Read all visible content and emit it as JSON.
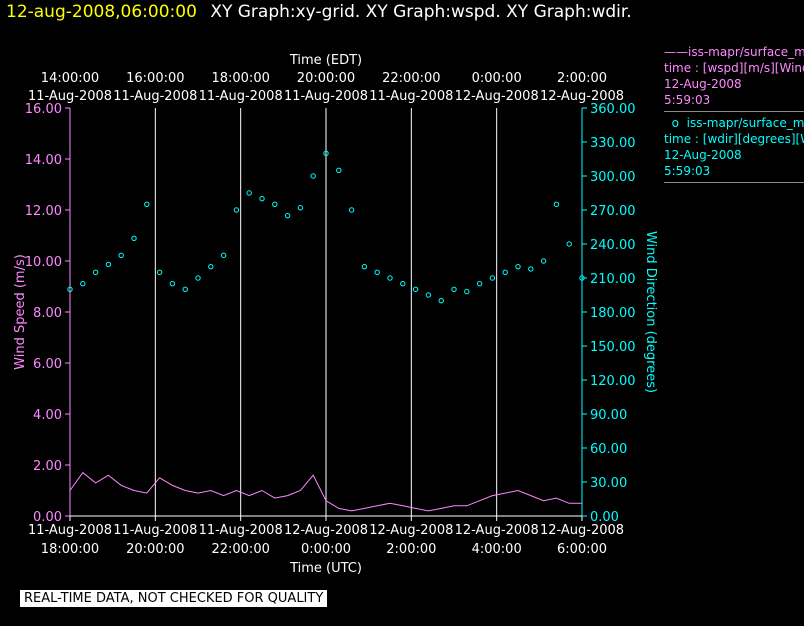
{
  "title": {
    "datetime": "12-aug-2008,06:00:00",
    "graphs": "XY Graph:xy-grid.  XY Graph:wspd.  XY Graph:wdir."
  },
  "top_axis": {
    "label": "Time (EDT)",
    "ticks": [
      {
        "time": "14:00:00",
        "date": "11-Aug-2008"
      },
      {
        "time": "16:00:00",
        "date": "11-Aug-2008"
      },
      {
        "time": "18:00:00",
        "date": "11-Aug-2008"
      },
      {
        "time": "20:00:00",
        "date": "11-Aug-2008"
      },
      {
        "time": "22:00:00",
        "date": "11-Aug-2008"
      },
      {
        "time": "0:00:00",
        "date": "12-Aug-2008"
      },
      {
        "time": "2:00:00",
        "date": "12-Aug-2008"
      }
    ]
  },
  "bottom_axis": {
    "label": "Time (UTC)",
    "ticks": [
      {
        "date": "11-Aug-2008",
        "time": "18:00:00"
      },
      {
        "date": "11-Aug-2008",
        "time": "20:00:00"
      },
      {
        "date": "11-Aug-2008",
        "time": "22:00:00"
      },
      {
        "date": "12-Aug-2008",
        "time": "0:00:00"
      },
      {
        "date": "12-Aug-2008",
        "time": "2:00:00"
      },
      {
        "date": "12-Aug-2008",
        "time": "4:00:00"
      },
      {
        "date": "12-Aug-2008",
        "time": "6:00:00"
      }
    ]
  },
  "left_axis": {
    "label": "Wind Speed (m/s)",
    "ticks": [
      "0.00",
      "2.00",
      "4.00",
      "6.00",
      "8.00",
      "10.00",
      "12.00",
      "14.00",
      "16.00"
    ]
  },
  "right_axis": {
    "label": "Wind Direction (degrees)",
    "ticks": [
      "0.00",
      "30.00",
      "60.00",
      "90.00",
      "120.00",
      "150.00",
      "180.00",
      "210.00",
      "240.00",
      "270.00",
      "300.00",
      "330.00",
      "360.00"
    ]
  },
  "legend": {
    "wspd": {
      "line1": "iss-mapr/surface_m",
      "line2": "time : [wspd][m/s][Wind",
      "line3": "12-Aug-2008",
      "line4": "5:59:03"
    },
    "wdir": {
      "line1": "iss-mapr/surface_m",
      "line2": "time : [wdir][degrees][W",
      "line3": "12-Aug-2008",
      "line4": "5:59:03"
    }
  },
  "disclaimer": "REAL-TIME DATA, NOT CHECKED FOR QUALITY",
  "colors": {
    "wspd": "#ff88ff",
    "wdir": "#00ffff",
    "title_date": "#ffff00",
    "grid": "#ffffff"
  },
  "chart_data": {
    "type": "line",
    "x_unit": "hours since 11-Aug-2008 18:00 UTC",
    "xlim": [
      0,
      12
    ],
    "series": [
      {
        "name": "iss-mapr/surface_m time : [wspd][m/s]",
        "axis": "left",
        "ylim": [
          0,
          16
        ],
        "x": [
          0,
          0.3,
          0.6,
          0.9,
          1.2,
          1.5,
          1.8,
          2.1,
          2.4,
          2.7,
          3.0,
          3.3,
          3.6,
          3.9,
          4.2,
          4.5,
          4.8,
          5.1,
          5.4,
          5.7,
          6.0,
          6.3,
          6.6,
          6.9,
          7.2,
          7.5,
          7.8,
          8.1,
          8.4,
          8.7,
          9.0,
          9.3,
          9.6,
          9.9,
          10.2,
          10.5,
          10.8,
          11.1,
          11.4,
          11.7,
          12.0
        ],
        "values": [
          1.0,
          1.7,
          1.3,
          1.6,
          1.2,
          1.0,
          0.9,
          1.5,
          1.2,
          1.0,
          0.9,
          1.0,
          0.8,
          1.0,
          0.8,
          1.0,
          0.7,
          0.8,
          1.0,
          1.6,
          0.6,
          0.3,
          0.2,
          0.3,
          0.4,
          0.5,
          0.4,
          0.3,
          0.2,
          0.3,
          0.4,
          0.4,
          0.6,
          0.8,
          0.9,
          1.0,
          0.8,
          0.6,
          0.7,
          0.5,
          0.5
        ]
      },
      {
        "name": "iss-mapr/surface_m time : [wdir][degrees]",
        "axis": "right",
        "ylim": [
          0,
          360
        ],
        "x": [
          0,
          0.3,
          0.6,
          0.9,
          1.2,
          1.5,
          1.8,
          2.1,
          2.4,
          2.7,
          3.0,
          3.3,
          3.6,
          3.9,
          4.2,
          4.5,
          4.8,
          5.1,
          5.4,
          5.7,
          6.0,
          6.3,
          6.6,
          6.9,
          7.2,
          7.5,
          7.8,
          8.1,
          8.4,
          8.7,
          9.0,
          9.3,
          9.6,
          9.9,
          10.2,
          10.5,
          10.8,
          11.1,
          11.4,
          11.7,
          12.0
        ],
        "values": [
          200,
          205,
          215,
          222,
          230,
          245,
          275,
          215,
          205,
          200,
          210,
          220,
          230,
          270,
          285,
          280,
          275,
          265,
          272,
          300,
          320,
          305,
          270,
          220,
          215,
          210,
          205,
          200,
          195,
          190,
          200,
          198,
          205,
          210,
          215,
          220,
          218,
          225,
          275,
          240,
          210
        ]
      }
    ]
  }
}
